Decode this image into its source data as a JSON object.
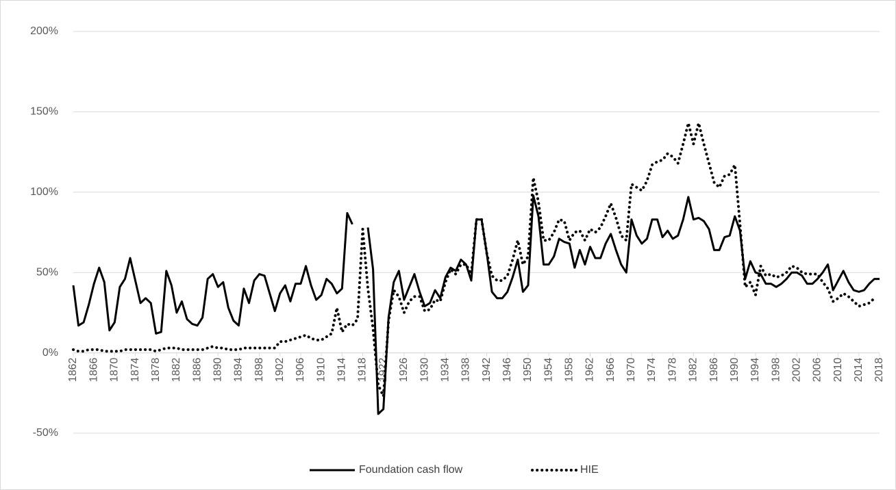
{
  "chart_data": {
    "type": "line",
    "x": [
      1862,
      1863,
      1864,
      1865,
      1866,
      1867,
      1868,
      1869,
      1870,
      1871,
      1872,
      1873,
      1874,
      1875,
      1876,
      1877,
      1878,
      1879,
      1880,
      1881,
      1882,
      1883,
      1884,
      1885,
      1886,
      1887,
      1888,
      1889,
      1890,
      1891,
      1892,
      1893,
      1894,
      1895,
      1896,
      1897,
      1898,
      1899,
      1900,
      1901,
      1902,
      1903,
      1904,
      1905,
      1906,
      1907,
      1908,
      1909,
      1910,
      1911,
      1912,
      1913,
      1914,
      1915,
      1916,
      1917,
      1918,
      1919,
      1920,
      1921,
      1922,
      1923,
      1924,
      1925,
      1926,
      1927,
      1928,
      1929,
      1930,
      1931,
      1932,
      1933,
      1934,
      1935,
      1936,
      1937,
      1938,
      1939,
      1940,
      1941,
      1942,
      1943,
      1944,
      1945,
      1946,
      1947,
      1948,
      1949,
      1950,
      1951,
      1952,
      1953,
      1954,
      1955,
      1956,
      1957,
      1958,
      1959,
      1960,
      1961,
      1962,
      1963,
      1964,
      1965,
      1966,
      1967,
      1968,
      1969,
      1970,
      1971,
      1972,
      1973,
      1974,
      1975,
      1976,
      1977,
      1978,
      1979,
      1980,
      1981,
      1982,
      1983,
      1984,
      1985,
      1986,
      1987,
      1988,
      1989,
      1990,
      1991,
      1992,
      1993,
      1994,
      1995,
      1996,
      1997,
      1998,
      1999,
      2000,
      2001,
      2002,
      2003,
      2004,
      2005,
      2006,
      2007,
      2008,
      2009,
      2010,
      2011,
      2012,
      2013,
      2014,
      2015,
      2016,
      2017,
      2018
    ],
    "series": [
      {
        "name": "Foundation cash flow",
        "color": "#000000",
        "line_style": "solid",
        "values": [
          42,
          17,
          19,
          30,
          43,
          53,
          44,
          14,
          19,
          41,
          46,
          59,
          45,
          31,
          34,
          31,
          12,
          13,
          51,
          42,
          25,
          32,
          21,
          18,
          17,
          22,
          46,
          49,
          41,
          44,
          28,
          20,
          17,
          40,
          31,
          45,
          49,
          48,
          37,
          26,
          37,
          42,
          32,
          43,
          43,
          54,
          42,
          33,
          36,
          46,
          43,
          37,
          40,
          87,
          80,
          null,
          null,
          78,
          52,
          -38,
          -35,
          22,
          44,
          51,
          33,
          41,
          49,
          38,
          29,
          31,
          39,
          34,
          47,
          53,
          51,
          58,
          55,
          45,
          83,
          83,
          62,
          38,
          34,
          34,
          38,
          47,
          58,
          38,
          42,
          98,
          85,
          55,
          55,
          60,
          71,
          69,
          68,
          53,
          64,
          55,
          66,
          59,
          59,
          68,
          74,
          64,
          55,
          50,
          83,
          73,
          68,
          71,
          83,
          83,
          72,
          76,
          71,
          73,
          83,
          97,
          83,
          84,
          82,
          77,
          64,
          64,
          72,
          73,
          85,
          76,
          46,
          57,
          50,
          49,
          43,
          43,
          41,
          43,
          46,
          50,
          50,
          48,
          43,
          43,
          46,
          50,
          55,
          39,
          45,
          51,
          44,
          39,
          38,
          39,
          43,
          46,
          46
        ]
      },
      {
        "name": "HIE",
        "color": "#000000",
        "line_style": "dotted",
        "values": [
          2,
          1,
          1,
          2,
          2,
          2,
          1,
          1,
          1,
          1,
          2,
          2,
          2,
          2,
          2,
          2,
          1,
          2,
          3,
          3,
          3,
          2,
          2,
          2,
          2,
          2,
          3,
          4,
          3,
          3,
          2,
          2,
          2,
          3,
          3,
          3,
          3,
          3,
          3,
          3,
          7,
          7,
          8,
          9,
          10,
          11,
          9,
          8,
          8,
          10,
          12,
          28,
          13,
          18,
          17,
          21,
          77,
          40,
          15,
          -20,
          -27,
          20,
          39,
          35,
          25,
          32,
          35,
          35,
          26,
          27,
          33,
          32,
          44,
          52,
          49,
          55,
          55,
          49,
          83,
          83,
          62,
          48,
          45,
          45,
          48,
          58,
          70,
          55,
          60,
          109,
          94,
          70,
          70,
          75,
          83,
          82,
          70,
          75,
          76,
          70,
          77,
          75,
          78,
          85,
          93,
          84,
          73,
          70,
          105,
          103,
          101,
          107,
          117,
          119,
          120,
          124,
          122,
          118,
          130,
          143,
          130,
          143,
          130,
          118,
          106,
          103,
          110,
          111,
          117,
          80,
          41,
          44,
          36,
          54,
          48,
          49,
          47,
          48,
          50,
          54,
          53,
          50,
          49,
          49,
          49,
          44,
          40,
          32,
          34,
          37,
          35,
          32,
          29,
          30,
          31,
          34,
          null
        ]
      }
    ],
    "xlim": [
      1862,
      2018
    ],
    "xticks": [
      1862,
      1866,
      1870,
      1874,
      1878,
      1882,
      1886,
      1890,
      1894,
      1898,
      1902,
      1906,
      1910,
      1914,
      1918,
      1922,
      1926,
      1930,
      1934,
      1938,
      1942,
      1946,
      1950,
      1954,
      1958,
      1962,
      1966,
      1970,
      1974,
      1978,
      1982,
      1986,
      1990,
      1994,
      1998,
      2002,
      2006,
      2010,
      2014,
      2018
    ],
    "ylim": [
      -50,
      200
    ],
    "yticks": [
      {
        "value": -50,
        "label": "-50%"
      },
      {
        "value": 0,
        "label": "0%"
      },
      {
        "value": 50,
        "label": "50%"
      },
      {
        "value": 100,
        "label": "100%"
      },
      {
        "value": 150,
        "label": "150%"
      },
      {
        "value": 200,
        "label": "200%"
      }
    ],
    "grid": true,
    "legend": "bottom"
  }
}
